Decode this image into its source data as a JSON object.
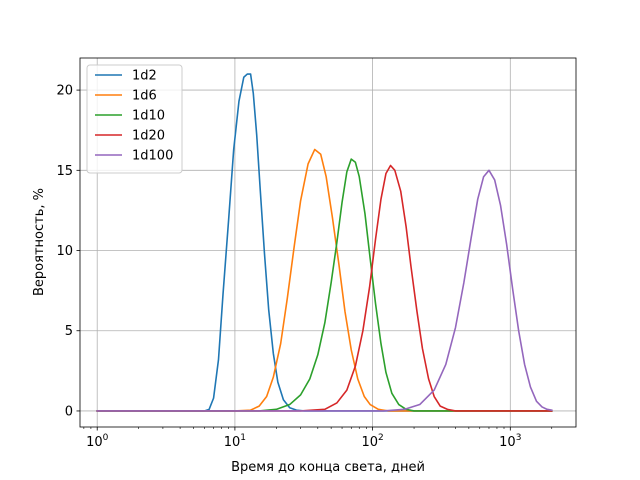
{
  "chart_data": {
    "type": "line",
    "xscale": "log",
    "xlabel": "Время до конца света, дней",
    "ylabel": "Вероятность, %",
    "xlim": [
      0.75,
      3000
    ],
    "ylim": [
      -1,
      22
    ],
    "grid": true,
    "legend_position": "top-left",
    "x_ticks": [
      {
        "value": 1,
        "base": "10",
        "exp": "0"
      },
      {
        "value": 10,
        "base": "10",
        "exp": "1"
      },
      {
        "value": 100,
        "base": "10",
        "exp": "2"
      },
      {
        "value": 1000,
        "base": "10",
        "exp": "3"
      }
    ],
    "y_ticks": [
      {
        "value": 0,
        "label": "0"
      },
      {
        "value": 5,
        "label": "5"
      },
      {
        "value": 10,
        "label": "10"
      },
      {
        "value": 15,
        "label": "15"
      },
      {
        "value": 20,
        "label": "20"
      }
    ],
    "series": [
      {
        "name": "1d2",
        "color": "#1f77b4",
        "points": [
          [
            1,
            0
          ],
          [
            5.5,
            0
          ],
          [
            6,
            0
          ],
          [
            6.5,
            0.1
          ],
          [
            7,
            0.8
          ],
          [
            7.6,
            3.2
          ],
          [
            8.2,
            7.3
          ],
          [
            9,
            11.9
          ],
          [
            9.8,
            16.3
          ],
          [
            10.7,
            19.3
          ],
          [
            11.6,
            20.8
          ],
          [
            12.3,
            21
          ],
          [
            13,
            21
          ],
          [
            13.6,
            19.8
          ],
          [
            14.4,
            17.2
          ],
          [
            15.3,
            13.7
          ],
          [
            16.4,
            9.8
          ],
          [
            17.6,
            6.3
          ],
          [
            19,
            3.6
          ],
          [
            20.5,
            1.8
          ],
          [
            22.5,
            0.7
          ],
          [
            25,
            0.2
          ],
          [
            28,
            0.05
          ],
          [
            32,
            0
          ],
          [
            100,
            0
          ],
          [
            2000,
            0
          ]
        ]
      },
      {
        "name": "1d6",
        "color": "#ff7f0e",
        "points": [
          [
            1,
            0
          ],
          [
            10,
            0
          ],
          [
            13,
            0.05
          ],
          [
            15,
            0.3
          ],
          [
            17,
            0.9
          ],
          [
            19,
            2.1
          ],
          [
            21.5,
            4.2
          ],
          [
            24,
            7
          ],
          [
            27,
            10.3
          ],
          [
            30,
            13.1
          ],
          [
            34,
            15.4
          ],
          [
            38,
            16.3
          ],
          [
            42,
            16
          ],
          [
            46,
            14.6
          ],
          [
            51,
            12.1
          ],
          [
            57,
            9.1
          ],
          [
            63,
            6.2
          ],
          [
            70,
            3.8
          ],
          [
            78,
            2
          ],
          [
            87,
            0.9
          ],
          [
            96,
            0.4
          ],
          [
            110,
            0.1
          ],
          [
            130,
            0
          ],
          [
            2000,
            0
          ]
        ]
      },
      {
        "name": "1d10",
        "color": "#2ca02c",
        "points": [
          [
            1,
            0
          ],
          [
            15,
            0
          ],
          [
            20,
            0.1
          ],
          [
            25,
            0.4
          ],
          [
            30,
            1
          ],
          [
            35,
            2
          ],
          [
            40,
            3.5
          ],
          [
            45,
            5.5
          ],
          [
            50,
            8
          ],
          [
            55,
            10.5
          ],
          [
            60,
            13
          ],
          [
            65,
            14.9
          ],
          [
            70,
            15.7
          ],
          [
            75,
            15.5
          ],
          [
            80,
            14.6
          ],
          [
            88,
            12.3
          ],
          [
            96,
            9.5
          ],
          [
            105,
            6.7
          ],
          [
            115,
            4.2
          ],
          [
            125,
            2.4
          ],
          [
            138,
            1.1
          ],
          [
            155,
            0.4
          ],
          [
            175,
            0.1
          ],
          [
            200,
            0
          ],
          [
            2000,
            0
          ]
        ]
      },
      {
        "name": "1d20",
        "color": "#d62728",
        "points": [
          [
            1,
            0
          ],
          [
            30,
            0
          ],
          [
            45,
            0.1
          ],
          [
            55,
            0.5
          ],
          [
            65,
            1.3
          ],
          [
            75,
            2.8
          ],
          [
            85,
            5
          ],
          [
            95,
            7.7
          ],
          [
            105,
            10.7
          ],
          [
            115,
            13.2
          ],
          [
            125,
            14.8
          ],
          [
            135,
            15.3
          ],
          [
            145,
            15
          ],
          [
            160,
            13.7
          ],
          [
            175,
            11.5
          ],
          [
            190,
            9
          ],
          [
            210,
            6.2
          ],
          [
            230,
            3.9
          ],
          [
            255,
            2
          ],
          [
            280,
            0.9
          ],
          [
            310,
            0.3
          ],
          [
            350,
            0.1
          ],
          [
            400,
            0
          ],
          [
            2000,
            0
          ]
        ]
      },
      {
        "name": "1d100",
        "color": "#9467bd",
        "points": [
          [
            1,
            0
          ],
          [
            120,
            0
          ],
          [
            170,
            0.1
          ],
          [
            220,
            0.4
          ],
          [
            280,
            1.3
          ],
          [
            340,
            2.9
          ],
          [
            400,
            5.2
          ],
          [
            460,
            8
          ],
          [
            520,
            10.8
          ],
          [
            580,
            13.2
          ],
          [
            640,
            14.6
          ],
          [
            700,
            15
          ],
          [
            770,
            14.4
          ],
          [
            850,
            12.8
          ],
          [
            940,
            10.4
          ],
          [
            1040,
            7.6
          ],
          [
            1150,
            5
          ],
          [
            1270,
            2.9
          ],
          [
            1400,
            1.5
          ],
          [
            1550,
            0.6
          ],
          [
            1700,
            0.25
          ],
          [
            1850,
            0.1
          ],
          [
            2000,
            0.05
          ]
        ]
      }
    ]
  }
}
